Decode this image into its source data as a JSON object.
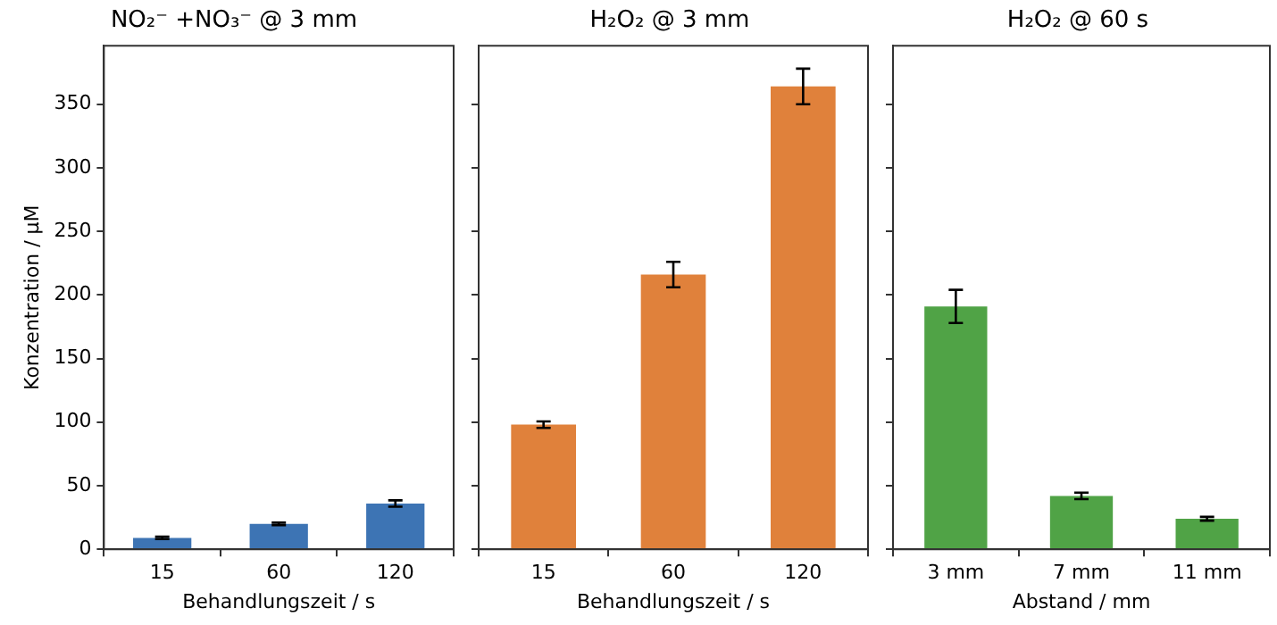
{
  "chart_data": [
    {
      "type": "bar",
      "title": "NO₂⁻ +NO₃⁻ @ 3 mm",
      "xlabel": "Behandlungszeit / s",
      "ylabel": "Konzentration / µM",
      "categories": [
        "15",
        "60",
        "120"
      ],
      "values": [
        9,
        20,
        36
      ],
      "errors": [
        1,
        1,
        2.5
      ],
      "color": "#3d74b4",
      "ylim": [
        0,
        396
      ],
      "yticks": [
        0,
        50,
        100,
        150,
        200,
        250,
        300,
        350
      ],
      "grid": false,
      "legend": false
    },
    {
      "type": "bar",
      "title": "H₂O₂ @ 3 mm",
      "xlabel": "Behandlungszeit / s",
      "categories": [
        "15",
        "60",
        "120"
      ],
      "values": [
        98,
        216,
        364
      ],
      "errors": [
        2.5,
        10,
        14
      ],
      "color": "#e0813b",
      "ylim": [
        0,
        396
      ],
      "yticks": [
        0,
        50,
        100,
        150,
        200,
        250,
        300,
        350
      ],
      "tick_labels": "x",
      "grid": false,
      "legend": false
    },
    {
      "type": "bar",
      "title": "H₂O₂ @ 60 s",
      "xlabel": "Abstand / mm",
      "categories": [
        "3 mm",
        "7 mm",
        "11 mm"
      ],
      "values": [
        191,
        42,
        24
      ],
      "errors": [
        13,
        2.5,
        1.5
      ],
      "color": "#50a346",
      "ylim": [
        0,
        396
      ],
      "yticks": [
        0,
        50,
        100,
        150,
        200,
        250,
        300,
        350
      ],
      "tick_labels": "x",
      "grid": false,
      "legend": false
    }
  ]
}
